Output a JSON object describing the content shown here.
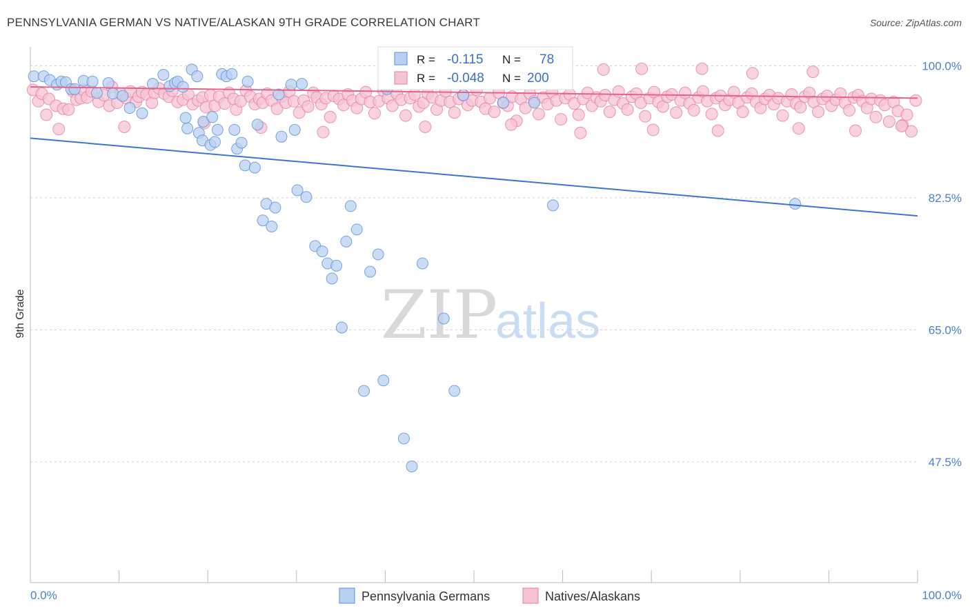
{
  "title": "PENNSYLVANIA GERMAN VS NATIVE/ALASKAN 9TH GRADE CORRELATION CHART",
  "source": "Source: ZipAtlas.com",
  "watermark": {
    "zip": "ZIP",
    "atlas": "atlas"
  },
  "colors": {
    "blue": "#5b8fd9",
    "blue_fill": "#b9d0f2",
    "blue_line": "#3a76d4",
    "pink": "#e67fa0",
    "pink_fill": "#f6c3d3",
    "pink_line": "#e8608d",
    "grid": "#cfcfcf",
    "axis_label": "#4a7fd4"
  },
  "legend_top": {
    "rows": [
      {
        "r_label": "R =",
        "r_value": "-0.115",
        "n_label": "N =",
        "n_value": "78"
      },
      {
        "r_label": "R =",
        "r_value": "-0.048",
        "n_label": "N =",
        "n_value": "200"
      }
    ]
  },
  "legend_bottom": {
    "items": [
      {
        "label": "Pennsylvania Germans"
      },
      {
        "label": "Natives/Alaskans"
      }
    ]
  },
  "chart_data": {
    "type": "scatter",
    "title": "PENNSYLVANIA GERMAN VS NATIVE/ALASKAN 9TH GRADE CORRELATION CHART",
    "xlabel": "",
    "ylabel": "9th Grade",
    "xlim": [
      0,
      100
    ],
    "ylim": [
      31.5,
      102.5
    ],
    "x_tick_labels": [
      "0.0%",
      "100.0%"
    ],
    "y_ticks": [
      47.5,
      65.0,
      82.5,
      100.0
    ],
    "y_tick_labels": [
      "47.5%",
      "65.0%",
      "82.5%",
      "100.0%"
    ],
    "grid": true,
    "series": [
      {
        "name": "Pennsylvania Germans",
        "trend": {
          "x": [
            0,
            100
          ],
          "y": [
            90.4,
            80.1
          ]
        },
        "points": [
          [
            0.4,
            98.6
          ],
          [
            1.5,
            98.6
          ],
          [
            2.2,
            98.1
          ],
          [
            3.0,
            97.5
          ],
          [
            3.5,
            97.9
          ],
          [
            4.0,
            97.8
          ],
          [
            4.6,
            96.9
          ],
          [
            5.0,
            96.9
          ],
          [
            6.0,
            98.0
          ],
          [
            7.0,
            97.9
          ],
          [
            7.5,
            96.4
          ],
          [
            8.8,
            97.7
          ],
          [
            9.3,
            96.3
          ],
          [
            10.4,
            96.0
          ],
          [
            11.2,
            94.4
          ],
          [
            12.6,
            93.7
          ],
          [
            13.8,
            97.6
          ],
          [
            15.0,
            98.8
          ],
          [
            15.7,
            97.3
          ],
          [
            16.3,
            97.7
          ],
          [
            16.6,
            97.9
          ],
          [
            17.2,
            97.2
          ],
          [
            17.5,
            93.1
          ],
          [
            17.7,
            91.7
          ],
          [
            18.2,
            99.5
          ],
          [
            18.8,
            98.6
          ],
          [
            19.0,
            91.1
          ],
          [
            19.4,
            90.1
          ],
          [
            19.5,
            92.6
          ],
          [
            20.3,
            89.5
          ],
          [
            20.5,
            93.2
          ],
          [
            20.8,
            89.9
          ],
          [
            21.1,
            91.5
          ],
          [
            21.6,
            98.9
          ],
          [
            22.1,
            98.6
          ],
          [
            22.7,
            98.9
          ],
          [
            23.0,
            91.5
          ],
          [
            23.3,
            89.0
          ],
          [
            23.8,
            89.8
          ],
          [
            24.2,
            86.8
          ],
          [
            24.5,
            97.9
          ],
          [
            25.3,
            86.5
          ],
          [
            25.6,
            92.2
          ],
          [
            26.2,
            79.5
          ],
          [
            26.6,
            81.7
          ],
          [
            27.2,
            78.7
          ],
          [
            27.6,
            81.2
          ],
          [
            28.0,
            96.2
          ],
          [
            28.3,
            90.6
          ],
          [
            29.4,
            97.5
          ],
          [
            29.8,
            91.5
          ],
          [
            30.1,
            83.5
          ],
          [
            30.6,
            97.6
          ],
          [
            31.1,
            82.6
          ],
          [
            32.1,
            76.1
          ],
          [
            32.9,
            75.4
          ],
          [
            33.5,
            73.8
          ],
          [
            34.0,
            71.8
          ],
          [
            34.5,
            73.5
          ],
          [
            35.1,
            65.3
          ],
          [
            35.6,
            76.7
          ],
          [
            36.1,
            81.4
          ],
          [
            36.8,
            78.3
          ],
          [
            37.6,
            56.9
          ],
          [
            38.3,
            72.7
          ],
          [
            39.2,
            75.0
          ],
          [
            39.8,
            58.3
          ],
          [
            40.2,
            96.9
          ],
          [
            42.1,
            50.6
          ],
          [
            43.0,
            46.9
          ],
          [
            44.2,
            73.8
          ],
          [
            46.6,
            66.5
          ],
          [
            47.8,
            56.9
          ],
          [
            48.8,
            96.1
          ],
          [
            53.3,
            95.1
          ],
          [
            56.8,
            95.1
          ],
          [
            58.9,
            81.5
          ],
          [
            86.2,
            81.7
          ]
        ]
      },
      {
        "name": "Natives/Alaskans",
        "trend": {
          "x": [
            0,
            100
          ],
          "y": [
            97.2,
            95.7
          ]
        },
        "points": [
          [
            0.3,
            96.8
          ],
          [
            0.9,
            95.3
          ],
          [
            1.3,
            96.3
          ],
          [
            1.8,
            93.5
          ],
          [
            2.1,
            95.6
          ],
          [
            2.9,
            94.7
          ],
          [
            3.7,
            94.3
          ],
          [
            4.3,
            94.2
          ],
          [
            4.8,
            96.6
          ],
          [
            5.2,
            95.5
          ],
          [
            5.7,
            95.7
          ],
          [
            6.0,
            96.8
          ],
          [
            6.4,
            95.8
          ],
          [
            6.9,
            96.6
          ],
          [
            7.7,
            95.2
          ],
          [
            8.3,
            96.1
          ],
          [
            8.9,
            94.7
          ],
          [
            9.2,
            97.2
          ],
          [
            9.8,
            95.1
          ],
          [
            10.2,
            96.3
          ],
          [
            10.8,
            95.7
          ],
          [
            11.3,
            96.6
          ],
          [
            11.9,
            95.2
          ],
          [
            12.2,
            95.9
          ],
          [
            12.6,
            96.5
          ],
          [
            13.1,
            96.2
          ],
          [
            13.7,
            95.1
          ],
          [
            14.0,
            96.4
          ],
          [
            14.5,
            97.0
          ],
          [
            15.1,
            96.3
          ],
          [
            15.6,
            95.9
          ],
          [
            16.0,
            96.7
          ],
          [
            16.6,
            95.2
          ],
          [
            17.2,
            95.5
          ],
          [
            17.8,
            96.2
          ],
          [
            18.3,
            94.9
          ],
          [
            18.9,
            95.4
          ],
          [
            19.4,
            95.8
          ],
          [
            19.8,
            94.5
          ],
          [
            20.3,
            96.1
          ],
          [
            20.8,
            94.7
          ],
          [
            21.3,
            95.9
          ],
          [
            21.9,
            95.0
          ],
          [
            22.4,
            96.4
          ],
          [
            22.9,
            95.6
          ],
          [
            23.2,
            94.2
          ],
          [
            23.7,
            95.3
          ],
          [
            24.3,
            96.7
          ],
          [
            24.8,
            95.9
          ],
          [
            25.3,
            94.9
          ],
          [
            25.8,
            95.6
          ],
          [
            26.2,
            95.1
          ],
          [
            26.7,
            96.3
          ],
          [
            27.2,
            95.4
          ],
          [
            27.8,
            94.3
          ],
          [
            28.3,
            95.9
          ],
          [
            28.8,
            95.1
          ],
          [
            29.2,
            96.6
          ],
          [
            29.7,
            95.3
          ],
          [
            30.3,
            93.8
          ],
          [
            30.8,
            95.4
          ],
          [
            31.3,
            94.6
          ],
          [
            31.9,
            96.4
          ],
          [
            32.3,
            95.8
          ],
          [
            32.8,
            94.9
          ],
          [
            33.3,
            95.7
          ],
          [
            33.8,
            93.2
          ],
          [
            34.2,
            96.0
          ],
          [
            34.8,
            95.6
          ],
          [
            35.3,
            94.8
          ],
          [
            35.8,
            96.2
          ],
          [
            36.3,
            95.4
          ],
          [
            36.8,
            94.4
          ],
          [
            37.3,
            95.6
          ],
          [
            37.8,
            96.5
          ],
          [
            38.3,
            95.2
          ],
          [
            38.8,
            93.7
          ],
          [
            39.3,
            95.3
          ],
          [
            39.8,
            96.7
          ],
          [
            40.3,
            95.7
          ],
          [
            40.8,
            94.7
          ],
          [
            41.3,
            96.3
          ],
          [
            41.8,
            95.5
          ],
          [
            42.3,
            93.4
          ],
          [
            42.8,
            95.7
          ],
          [
            43.3,
            96.2
          ],
          [
            43.8,
            94.6
          ],
          [
            44.3,
            95.1
          ],
          [
            44.8,
            96.3
          ],
          [
            45.3,
            95.8
          ],
          [
            45.8,
            94.2
          ],
          [
            46.3,
            95.4
          ],
          [
            46.8,
            96.6
          ],
          [
            47.3,
            95.2
          ],
          [
            47.8,
            93.8
          ],
          [
            48.3,
            95.6
          ],
          [
            48.8,
            96.1
          ],
          [
            49.3,
            94.8
          ],
          [
            49.8,
            95.4
          ],
          [
            50.3,
            96.8
          ],
          [
            50.8,
            95.2
          ],
          [
            51.3,
            94.3
          ],
          [
            51.8,
            95.7
          ],
          [
            52.3,
            93.9
          ],
          [
            52.8,
            96.4
          ],
          [
            53.3,
            95.1
          ],
          [
            53.8,
            94.7
          ],
          [
            54.3,
            95.9
          ],
          [
            54.8,
            92.7
          ],
          [
            55.3,
            95.6
          ],
          [
            55.8,
            94.4
          ],
          [
            56.3,
            96.3
          ],
          [
            56.8,
            95.3
          ],
          [
            57.3,
            93.6
          ],
          [
            57.8,
            95.8
          ],
          [
            58.3,
            94.9
          ],
          [
            58.8,
            96.5
          ],
          [
            59.3,
            95.4
          ],
          [
            59.8,
            92.9
          ],
          [
            60.3,
            95.7
          ],
          [
            60.8,
            96.2
          ],
          [
            61.3,
            95.0
          ],
          [
            61.8,
            93.5
          ],
          [
            62.3,
            95.6
          ],
          [
            62.8,
            96.4
          ],
          [
            63.3,
            94.7
          ],
          [
            63.8,
            95.8
          ],
          [
            64.3,
            95.3
          ],
          [
            64.8,
            96.1
          ],
          [
            65.3,
            93.9
          ],
          [
            65.8,
            95.5
          ],
          [
            66.3,
            96.6
          ],
          [
            66.8,
            95.0
          ],
          [
            67.3,
            94.2
          ],
          [
            67.8,
            95.9
          ],
          [
            68.3,
            96.3
          ],
          [
            68.8,
            95.1
          ],
          [
            69.3,
            93.3
          ],
          [
            69.8,
            95.7
          ],
          [
            70.3,
            96.5
          ],
          [
            70.8,
            95.2
          ],
          [
            71.3,
            94.6
          ],
          [
            71.8,
            95.9
          ],
          [
            72.3,
            96.2
          ],
          [
            72.8,
            93.8
          ],
          [
            73.3,
            95.4
          ],
          [
            73.8,
            96.4
          ],
          [
            74.3,
            95.0
          ],
          [
            74.8,
            94.1
          ],
          [
            75.3,
            95.8
          ],
          [
            75.8,
            96.6
          ],
          [
            76.3,
            95.3
          ],
          [
            76.8,
            93.6
          ],
          [
            77.3,
            95.7
          ],
          [
            77.8,
            96.0
          ],
          [
            78.3,
            94.8
          ],
          [
            78.8,
            95.5
          ],
          [
            79.3,
            96.5
          ],
          [
            79.8,
            95.1
          ],
          [
            80.3,
            93.9
          ],
          [
            80.8,
            95.8
          ],
          [
            81.3,
            96.3
          ],
          [
            81.8,
            95.2
          ],
          [
            82.3,
            94.4
          ],
          [
            82.8,
            95.6
          ],
          [
            83.3,
            96.1
          ],
          [
            83.8,
            94.9
          ],
          [
            84.3,
            95.7
          ],
          [
            84.8,
            93.4
          ],
          [
            85.3,
            95.3
          ],
          [
            85.8,
            96.2
          ],
          [
            86.3,
            95.0
          ],
          [
            86.8,
            94.5
          ],
          [
            87.3,
            95.9
          ],
          [
            87.8,
            96.4
          ],
          [
            88.3,
            95.2
          ],
          [
            88.8,
            93.9
          ],
          [
            89.3,
            95.6
          ],
          [
            89.8,
            96.0
          ],
          [
            90.3,
            94.7
          ],
          [
            90.8,
            95.5
          ],
          [
            91.3,
            96.3
          ],
          [
            91.8,
            95.1
          ],
          [
            92.3,
            94.1
          ],
          [
            92.8,
            95.8
          ],
          [
            93.3,
            96.1
          ],
          [
            93.8,
            95.3
          ],
          [
            94.3,
            94.4
          ],
          [
            94.8,
            95.6
          ],
          [
            95.3,
            93.2
          ],
          [
            95.8,
            95.4
          ],
          [
            96.3,
            94.8
          ],
          [
            96.8,
            92.6
          ],
          [
            97.3,
            95.2
          ],
          [
            97.8,
            94.0
          ],
          [
            98.3,
            92.1
          ],
          [
            98.8,
            93.5
          ],
          [
            99.3,
            91.3
          ],
          [
            99.8,
            95.4
          ],
          [
            3.2,
            91.6
          ],
          [
            10.6,
            91.9
          ],
          [
            19.6,
            92.4
          ],
          [
            26.0,
            91.8
          ],
          [
            33.0,
            91.2
          ],
          [
            44.5,
            91.9
          ],
          [
            54.2,
            92.2
          ],
          [
            62.0,
            91.1
          ],
          [
            70.2,
            91.5
          ],
          [
            77.5,
            91.4
          ],
          [
            86.6,
            91.7
          ],
          [
            93.0,
            91.4
          ],
          [
            98.2,
            92.0
          ],
          [
            64.6,
            99.5
          ],
          [
            68.9,
            99.6
          ],
          [
            75.7,
            99.6
          ],
          [
            81.4,
            99.0
          ],
          [
            88.2,
            99.2
          ]
        ]
      }
    ]
  }
}
